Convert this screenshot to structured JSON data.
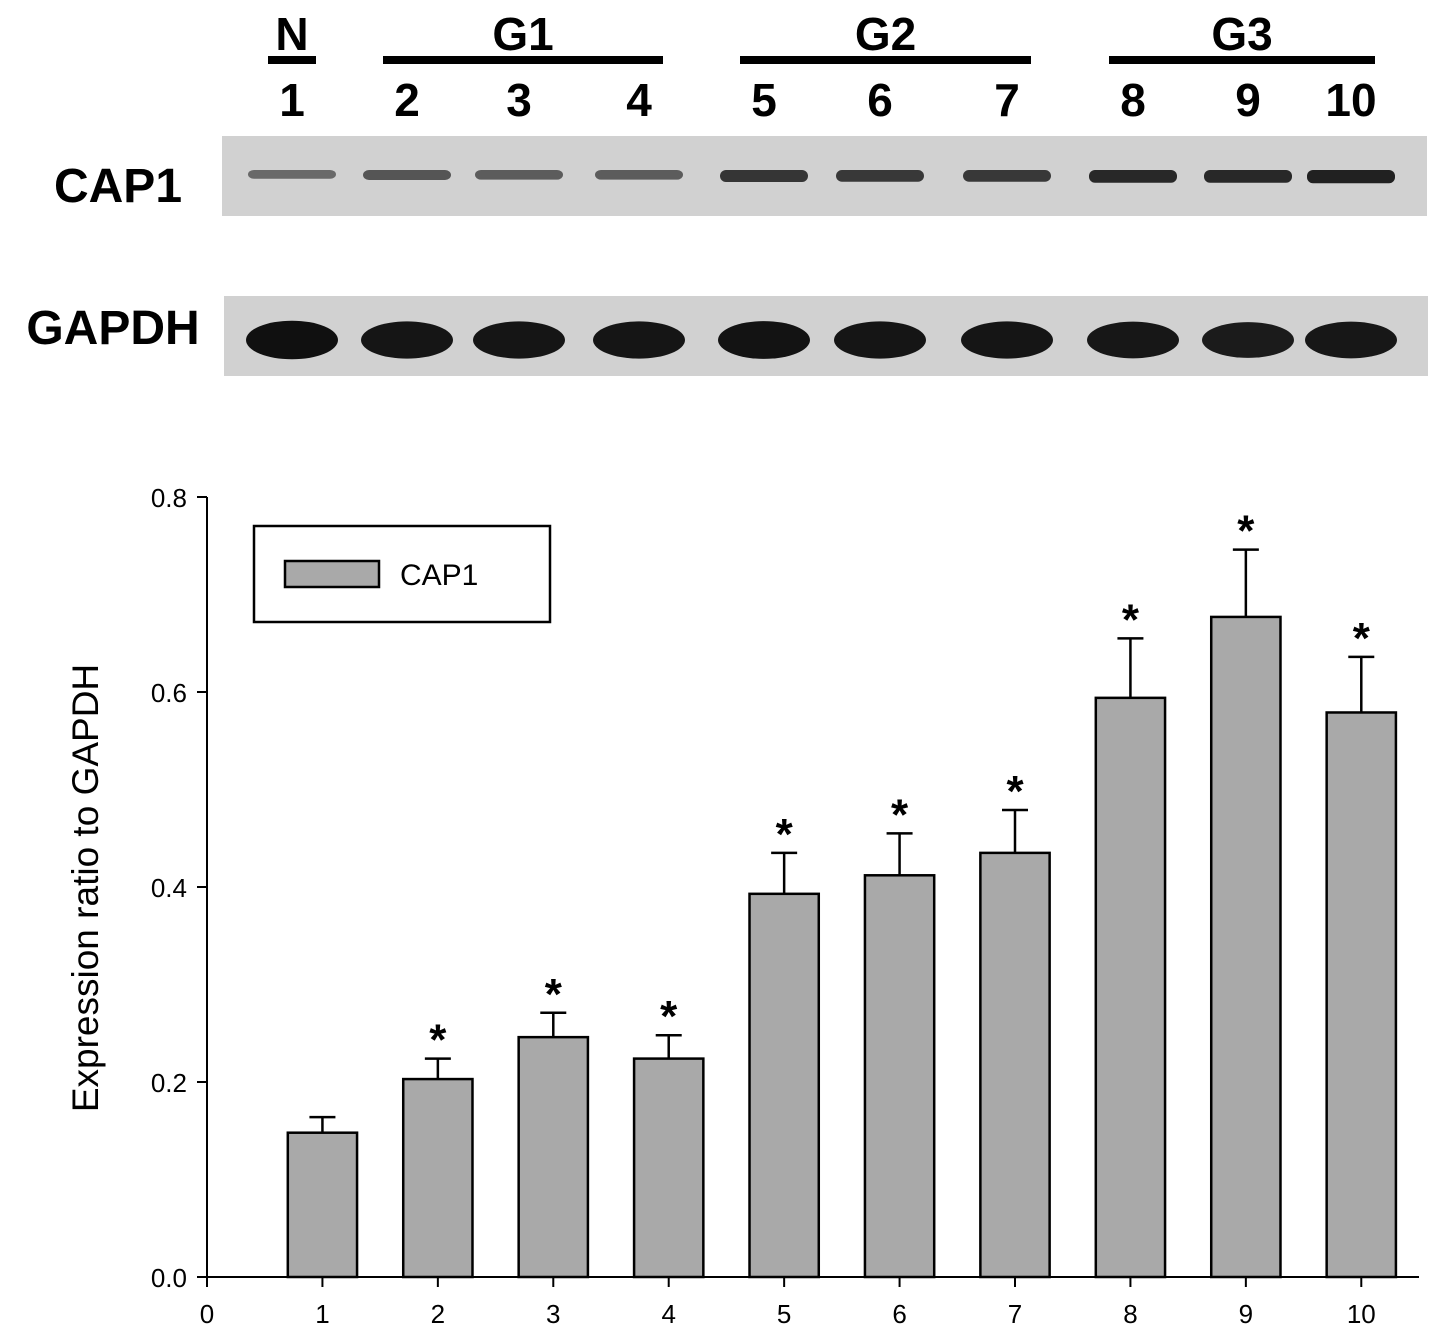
{
  "blot": {
    "groups": [
      {
        "label": "N",
        "lanes": [
          1
        ]
      },
      {
        "label": "G1",
        "lanes": [
          2,
          3,
          4
        ]
      },
      {
        "label": "G2",
        "lanes": [
          5,
          6,
          7
        ]
      },
      {
        "label": "G3",
        "lanes": [
          8,
          9,
          10
        ]
      }
    ],
    "lane_numbers": [
      "1",
      "2",
      "3",
      "4",
      "5",
      "6",
      "7",
      "8",
      "9",
      "10"
    ],
    "row_labels": {
      "cap1": "CAP1",
      "gapdh": "GAPDH"
    },
    "cap1_band_intensity": [
      0.35,
      0.5,
      0.45,
      0.45,
      0.75,
      0.72,
      0.72,
      0.85,
      0.85,
      0.9
    ],
    "gapdh_band_intensity": [
      0.95,
      0.9,
      0.9,
      0.9,
      0.92,
      0.9,
      0.9,
      0.88,
      0.85,
      0.88
    ]
  },
  "chart_data": {
    "type": "bar",
    "categories": [
      "1",
      "2",
      "3",
      "4",
      "5",
      "6",
      "7",
      "8",
      "9",
      "10"
    ],
    "x_values": [
      1,
      2,
      3,
      4,
      5,
      6,
      7,
      8,
      9,
      10
    ],
    "series": [
      {
        "name": "CAP1",
        "values": [
          0.148,
          0.203,
          0.246,
          0.224,
          0.393,
          0.412,
          0.435,
          0.594,
          0.677,
          0.579
        ],
        "errors": [
          0.016,
          0.021,
          0.025,
          0.024,
          0.042,
          0.043,
          0.044,
          0.061,
          0.069,
          0.057
        ],
        "significant": [
          false,
          true,
          true,
          true,
          true,
          true,
          true,
          true,
          true,
          true
        ]
      }
    ],
    "significance_marker": "*",
    "ylabel": "Expression ratio to GAPDH",
    "xlabel": "",
    "xlim": [
      0,
      10.5
    ],
    "ylim": [
      0,
      0.8
    ],
    "x_ticks": [
      "0",
      "1",
      "2",
      "3",
      "4",
      "5",
      "6",
      "7",
      "8",
      "9",
      "10"
    ],
    "y_ticks": [
      "0.0",
      "0.2",
      "0.4",
      "0.6",
      "0.8"
    ],
    "legend": {
      "label": "CAP1",
      "position": "top-left"
    },
    "grid": false,
    "colors": {
      "bar_fill": "#a9a9a9",
      "bar_stroke": "#000000"
    }
  }
}
